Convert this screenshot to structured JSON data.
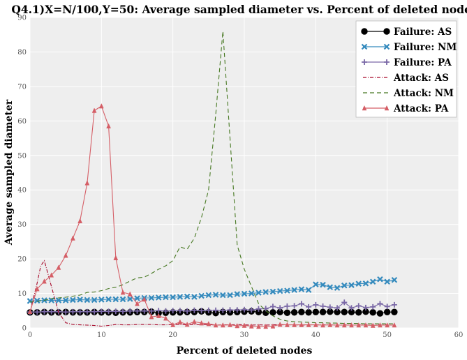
{
  "chart_data": {
    "type": "line",
    "title": "Q4.1)X=N/100,Y=50: Average sampled diameter vs. Percent of deleted nodes",
    "xlabel": "Percent of deleted nodes",
    "ylabel": "Average sampled diameter",
    "xlim": [
      0,
      60
    ],
    "ylim": [
      0,
      90
    ],
    "xticks": [
      0,
      10,
      20,
      30,
      40,
      50,
      60
    ],
    "yticks": [
      0,
      10,
      20,
      30,
      40,
      50,
      60,
      70,
      80,
      90
    ],
    "grid": true,
    "legend_position": "top-right",
    "series": [
      {
        "name": "Failure: AS",
        "color": "#000000",
        "style": "solid",
        "marker": "circle",
        "x": [
          0,
          1,
          2,
          3,
          4,
          5,
          6,
          7,
          8,
          9,
          10,
          11,
          12,
          13,
          14,
          15,
          16,
          17,
          18,
          19,
          20,
          21,
          22,
          23,
          24,
          25,
          26,
          27,
          28,
          29,
          30,
          31,
          32,
          33,
          34,
          35,
          36,
          37,
          38,
          39,
          40,
          41,
          42,
          43,
          44,
          45,
          46,
          47,
          48,
          49,
          50,
          51
        ],
        "y": [
          4.5,
          4.5,
          4.6,
          4.5,
          4.5,
          4.6,
          4.5,
          4.5,
          4.5,
          4.6,
          4.5,
          4.5,
          4.4,
          4.5,
          4.5,
          4.6,
          4.6,
          4.7,
          4.3,
          4.4,
          4.5,
          4.5,
          4.6,
          4.6,
          4.8,
          4.5,
          4.3,
          4.6,
          4.5,
          4.6,
          4.7,
          4.8,
          4.6,
          4.4,
          4.5,
          4.6,
          4.4,
          4.5,
          4.6,
          4.5,
          4.6,
          4.6,
          4.7,
          4.6,
          4.6,
          4.6,
          4.5,
          4.7,
          4.5,
          4.2,
          4.6,
          4.6
        ]
      },
      {
        "name": "Failure: NM",
        "color": "#348ABD",
        "style": "solid",
        "marker": "x",
        "x": [
          0,
          1,
          2,
          3,
          4,
          5,
          6,
          7,
          8,
          9,
          10,
          11,
          12,
          13,
          14,
          15,
          16,
          17,
          18,
          19,
          20,
          21,
          22,
          23,
          24,
          25,
          26,
          27,
          28,
          29,
          30,
          31,
          32,
          33,
          34,
          35,
          36,
          37,
          38,
          39,
          40,
          41,
          42,
          43,
          44,
          45,
          46,
          47,
          48,
          49,
          50,
          51
        ],
        "y": [
          7.8,
          7.9,
          8.0,
          8.0,
          8.0,
          8.0,
          8.1,
          8.2,
          8.1,
          8.1,
          8.2,
          8.3,
          8.3,
          8.3,
          8.4,
          8.6,
          8.7,
          8.7,
          8.8,
          8.9,
          8.9,
          9.0,
          9.1,
          9.0,
          9.3,
          9.5,
          9.6,
          9.5,
          9.5,
          9.8,
          9.9,
          10.0,
          10.2,
          10.4,
          10.5,
          10.7,
          10.8,
          11.0,
          11.2,
          11.0,
          12.6,
          12.5,
          11.8,
          11.6,
          12.3,
          12.4,
          12.8,
          12.9,
          13.4,
          14.1,
          13.4,
          13.9
        ]
      },
      {
        "name": "Failure: PA",
        "color": "#7A68A6",
        "style": "solid",
        "marker": "plus",
        "x": [
          0,
          1,
          2,
          3,
          4,
          5,
          6,
          7,
          8,
          9,
          10,
          11,
          12,
          13,
          14,
          15,
          16,
          17,
          18,
          19,
          20,
          21,
          22,
          23,
          24,
          25,
          26,
          27,
          28,
          29,
          30,
          31,
          32,
          33,
          34,
          35,
          36,
          37,
          38,
          39,
          40,
          41,
          42,
          43,
          44,
          45,
          46,
          47,
          48,
          49,
          50,
          51
        ],
        "y": [
          4.6,
          4.6,
          4.7,
          4.7,
          4.7,
          4.6,
          4.7,
          4.7,
          4.7,
          4.7,
          4.8,
          4.8,
          4.8,
          4.8,
          4.9,
          4.9,
          4.9,
          4.9,
          5.0,
          4.9,
          5.0,
          5.0,
          4.9,
          5.1,
          5.0,
          5.1,
          5.1,
          5.1,
          5.2,
          5.2,
          5.3,
          5.2,
          5.5,
          5.6,
          6.2,
          5.8,
          6.3,
          6.4,
          7.0,
          6.1,
          6.7,
          6.3,
          6.0,
          5.8,
          7.4,
          5.8,
          6.4,
          5.9,
          6.1,
          7.0,
          6.2,
          6.7
        ]
      },
      {
        "name": "Attack: AS",
        "color": "#A60628",
        "style": "dashdot",
        "marker": "none",
        "x": [
          0,
          1,
          1.5,
          2,
          3,
          4,
          5,
          6,
          7,
          8,
          9,
          10,
          11,
          12,
          13,
          14,
          15,
          16,
          17,
          18,
          19,
          20,
          21,
          22,
          23,
          24,
          25,
          26,
          27,
          28,
          29,
          30,
          31,
          32,
          33,
          34,
          35,
          36,
          37,
          38,
          39,
          40,
          41,
          42,
          43,
          44,
          45,
          46,
          47,
          48,
          49,
          50,
          51
        ],
        "y": [
          4.6,
          13.0,
          18.0,
          19.5,
          12.0,
          4.5,
          1.5,
          1.0,
          0.9,
          0.8,
          0.7,
          0.5,
          0.7,
          1.0,
          0.9,
          0.9,
          1.0,
          1.0,
          1.0,
          0.9,
          0.9,
          1.0,
          1.0,
          0.9,
          1.0,
          0.9,
          1.0,
          0.8,
          0.9,
          0.9,
          1.0,
          0.9,
          0.8,
          0.9,
          0.8,
          0.9,
          0.9,
          0.9,
          0.9,
          0.8,
          0.9,
          0.9,
          0.9,
          0.9,
          0.8,
          0.9,
          0.8,
          0.9,
          0.9,
          0.8,
          0.9,
          0.9,
          0.8
        ]
      },
      {
        "name": "Attack: NM",
        "color": "#467821",
        "style": "dashed",
        "marker": "none",
        "x": [
          0,
          1,
          2,
          3,
          4,
          5,
          6,
          7,
          8,
          9,
          10,
          11,
          12,
          13,
          14,
          15,
          16,
          17,
          18,
          19,
          20,
          21,
          22,
          23,
          24,
          25,
          26,
          27,
          28,
          29,
          30,
          31,
          32,
          33,
          34,
          35,
          36,
          37,
          38,
          39,
          40,
          41,
          42,
          43,
          44,
          45,
          46,
          47,
          48,
          49,
          50,
          51
        ],
        "y": [
          7.5,
          7.7,
          8.0,
          8.5,
          8.7,
          8.9,
          9.2,
          9.5,
          10.3,
          10.4,
          10.8,
          11.4,
          11.8,
          12.5,
          13.6,
          14.5,
          14.7,
          15.8,
          17.0,
          18.0,
          19.5,
          23.5,
          22.8,
          26.0,
          32.0,
          40.0,
          62.0,
          86.0,
          55.0,
          24.0,
          17.0,
          12.0,
          7.0,
          5.0,
          3.5,
          2.5,
          2.0,
          1.8,
          1.7,
          1.6,
          1.5,
          1.5,
          1.4,
          1.4,
          1.3,
          1.3,
          1.3,
          1.2,
          1.2,
          1.2,
          1.2,
          1.2
        ]
      },
      {
        "name": "Attack: PA",
        "color": "#D55E66",
        "style": "solid",
        "marker": "triangle",
        "x": [
          0,
          1,
          2,
          3,
          4,
          5,
          6,
          7,
          8,
          9,
          10,
          11,
          12,
          13,
          14,
          15,
          16,
          17,
          18,
          19,
          20,
          21,
          22,
          23,
          24,
          25,
          26,
          27,
          28,
          29,
          30,
          31,
          32,
          33,
          34,
          35,
          36,
          37,
          38,
          39,
          40,
          41,
          42,
          43,
          44,
          45,
          46,
          47,
          48,
          49,
          50,
          51
        ],
        "y": [
          4.7,
          11.3,
          13.5,
          15.3,
          17.5,
          21.0,
          26.0,
          31.0,
          42.0,
          63.0,
          64.3,
          58.5,
          20.3,
          10.3,
          9.8,
          7.0,
          8.3,
          3.2,
          3.5,
          2.8,
          0.9,
          1.7,
          1.0,
          1.8,
          1.4,
          1.2,
          0.8,
          0.8,
          0.9,
          0.6,
          0.7,
          0.5,
          0.4,
          0.4,
          0.5,
          1.0,
          0.9,
          0.9,
          0.9,
          0.9,
          0.9,
          0.8,
          0.9,
          0.8,
          0.8,
          0.8,
          0.8,
          0.8,
          0.7,
          0.8,
          0.8,
          0.8
        ]
      }
    ]
  }
}
